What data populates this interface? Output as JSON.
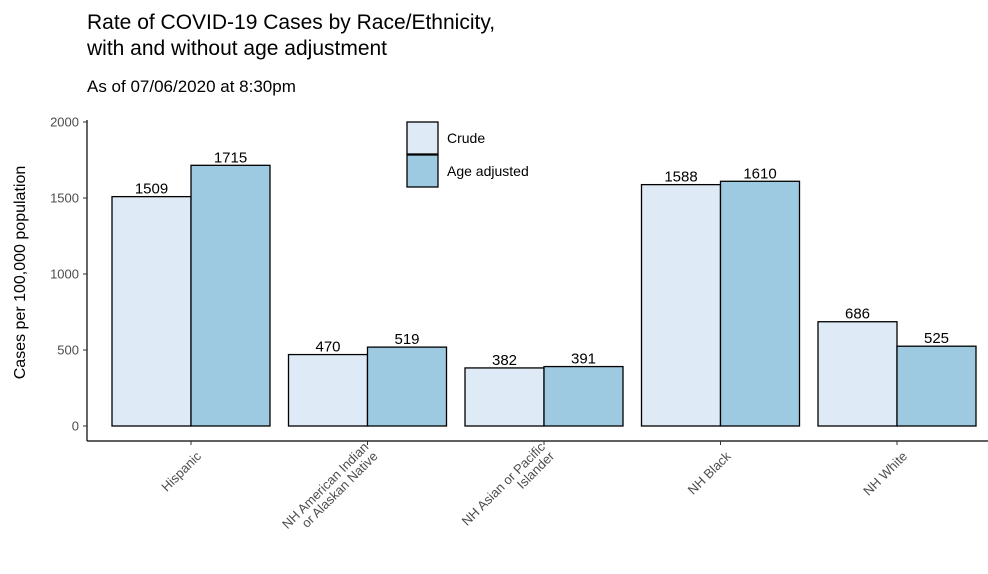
{
  "chart_data": {
    "type": "bar",
    "title": "Rate of COVID-19 Cases by Race/Ethnicity,\nwith and without age adjustment",
    "subtitle": "As of 07/06/2020 at 8:30pm",
    "xlabel": "",
    "ylabel": "Cases per 100,000 population",
    "ylim": [
      0,
      2050
    ],
    "yticks": [
      0,
      500,
      1000,
      1500,
      2000
    ],
    "categories": [
      [
        "Hispanic"
      ],
      [
        "NH American Indian",
        "or Alaskan Native"
      ],
      [
        "NH Asian or Pacific",
        "Islander"
      ],
      [
        "NH Black"
      ],
      [
        "NH White"
      ]
    ],
    "series": [
      {
        "name": "Crude",
        "color": "#deebf7",
        "values": [
          1509,
          470,
          382,
          1588,
          686
        ]
      },
      {
        "name": "Age adjusted",
        "color": "#9ecae1",
        "values": [
          1715,
          519,
          391,
          1610,
          525
        ]
      }
    ],
    "legend_position": "top-center",
    "grid": false
  }
}
